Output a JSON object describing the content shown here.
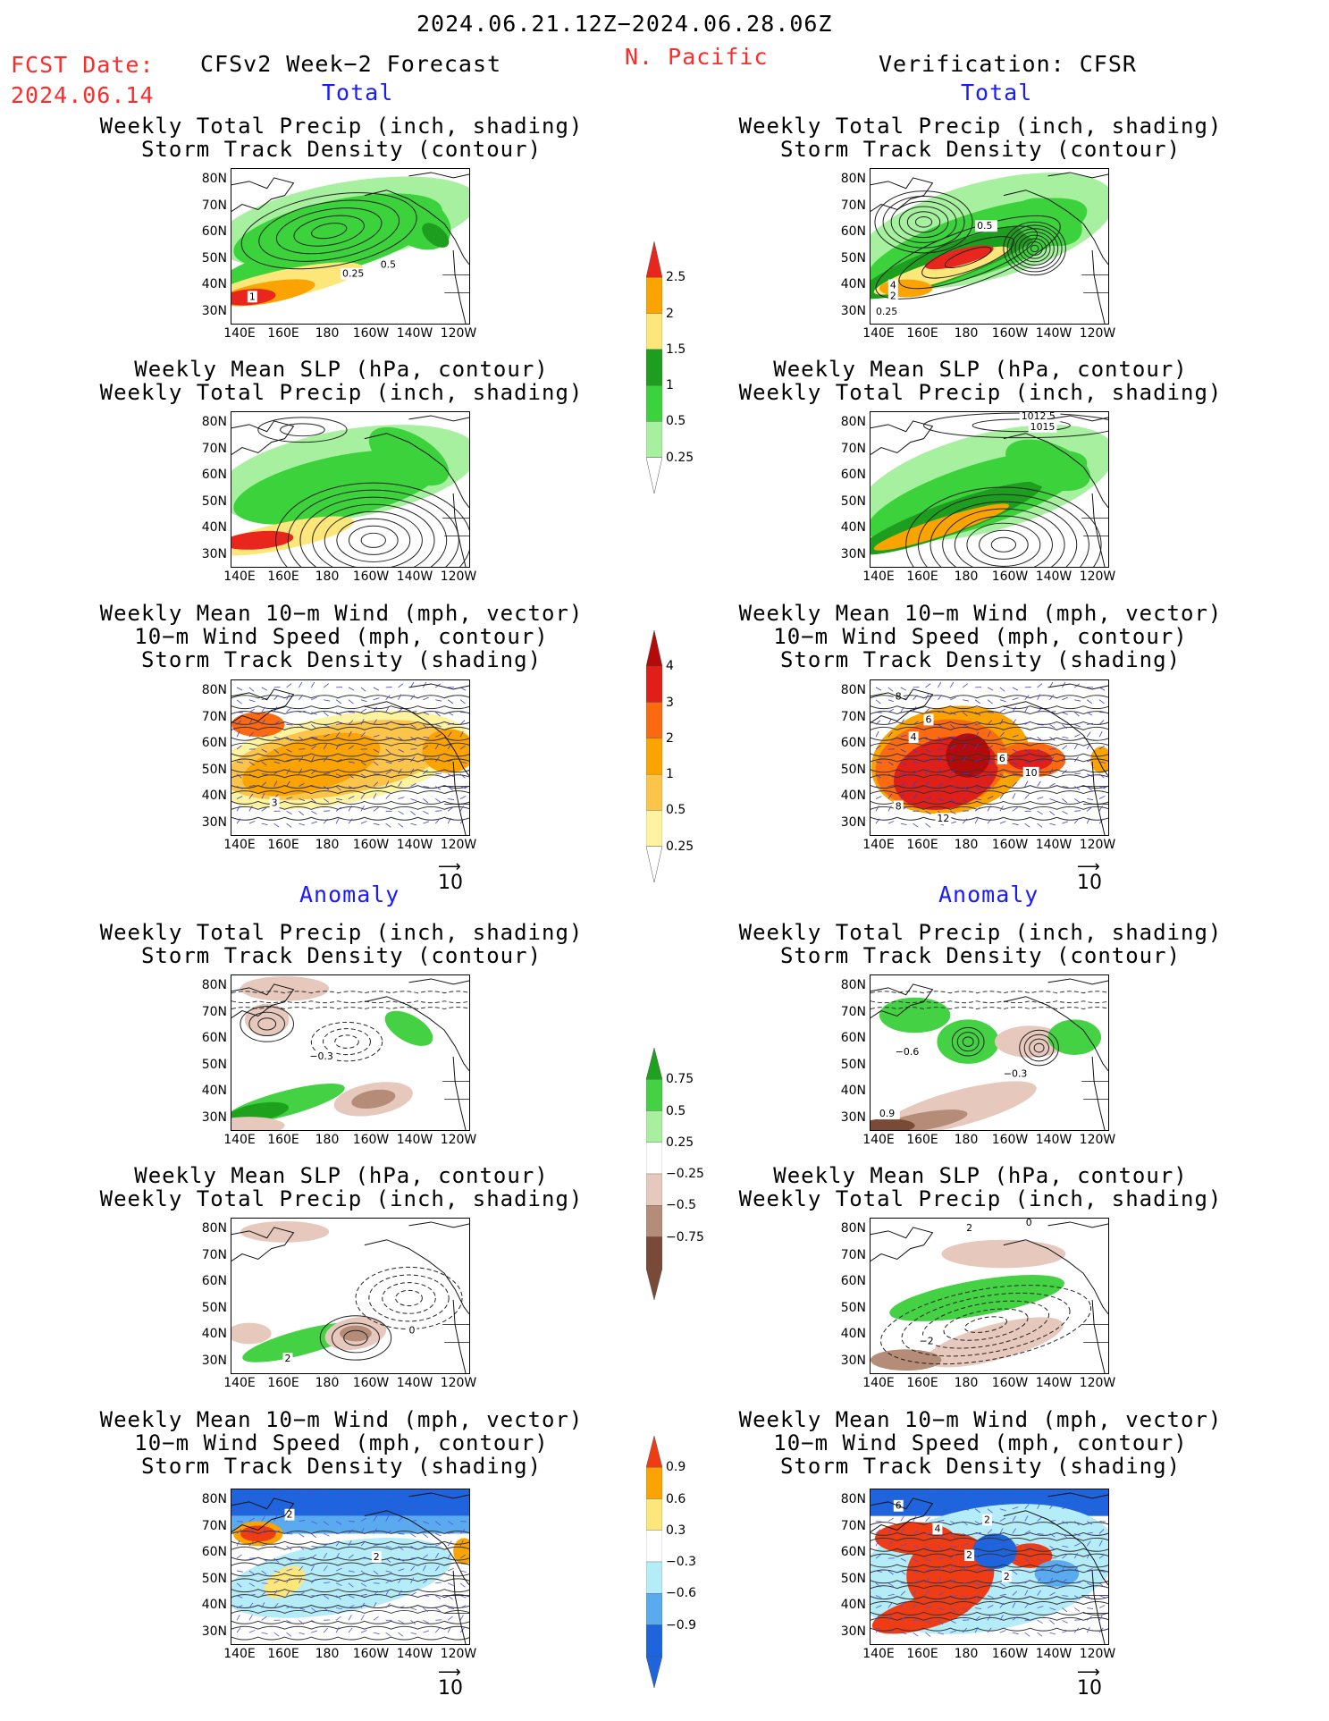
{
  "header": {
    "period": "2024.06.21.12Z−2024.06.28.06Z",
    "fcst_label": "FCST Date:",
    "fcst_date": "2024.06.14",
    "model": "CFSv2 Week−2 Forecast",
    "region": "N. Pacific",
    "verification": "Verification: CFSR"
  },
  "sections": {
    "total": "Total",
    "anomaly": "Anomaly"
  },
  "titles": {
    "precip_storm": [
      "Weekly Total Precip (inch, shading)",
      "Storm Track Density (contour)"
    ],
    "slp_precip": [
      "Weekly Mean SLP (hPa, contour)",
      "Weekly Total Precip (inch, shading)"
    ],
    "wind": [
      "Weekly Mean 10−m Wind (mph, vector)",
      "10−m Wind Speed (mph, contour)",
      "Storm Track Density (shading)"
    ]
  },
  "axes": {
    "lat": [
      "80N",
      "70N",
      "60N",
      "50N",
      "40N",
      "30N"
    ],
    "lon": [
      "140E",
      "160E",
      "180",
      "160W",
      "140W",
      "120W"
    ]
  },
  "vector_ref": "10",
  "colorbars": {
    "precip_total": {
      "labels": [
        "2.5",
        "2",
        "1.5",
        "1",
        "0.5",
        "0.25"
      ],
      "colors": [
        "#e8261e",
        "#fba300",
        "#fde67a",
        "#1e9e1e",
        "#3cd23c",
        "#a6f0a0"
      ]
    },
    "storm_total": {
      "labels": [
        "4",
        "3",
        "2",
        "1",
        "0.5",
        "0.25"
      ],
      "colors": [
        "#b40a0a",
        "#e02018",
        "#fb6a10",
        "#fba300",
        "#fdc44a",
        "#fef4a0"
      ]
    },
    "precip_anom": {
      "labels": [
        "0.75",
        "0.5",
        "0.25",
        "−0.25",
        "−0.5",
        "−0.75"
      ],
      "colors": [
        "#1ea21e",
        "#44d244",
        "#a8f0a0",
        "#ffffff",
        "#e6c8bc",
        "#b48c78",
        "#7a4a38"
      ]
    },
    "storm_anom": {
      "labels": [
        "0.9",
        "0.6",
        "0.3",
        "−0.3",
        "−0.6",
        "−0.9"
      ],
      "colors": [
        "#f03c14",
        "#fba300",
        "#fde67a",
        "#ffffff",
        "#b4ecf8",
        "#5aaaf0",
        "#1e64dc"
      ]
    }
  },
  "contour_labels": {
    "l_total_precip": [
      "1",
      "0.25",
      "0.5"
    ],
    "r_total_precip": [
      "0.5",
      "4",
      "2",
      "0.25"
    ],
    "r_total_slp": [
      "1012.5",
      "1015"
    ],
    "l_total_wind": [
      "3"
    ],
    "r_total_wind": [
      "8",
      "6",
      "4",
      "6",
      "10",
      "8",
      "12"
    ],
    "l_anom_precip": [
      "−0.3"
    ],
    "r_anom_precip": [
      "−0.6",
      "−0.3",
      "0.9"
    ],
    "l_anom_slp": [
      "0",
      "2"
    ],
    "r_anom_slp": [
      "2",
      "0",
      "−2"
    ],
    "l_anom_wind": [
      "2",
      "2"
    ],
    "r_anom_wind": [
      "6",
      "4",
      "2",
      "2",
      "2"
    ]
  }
}
